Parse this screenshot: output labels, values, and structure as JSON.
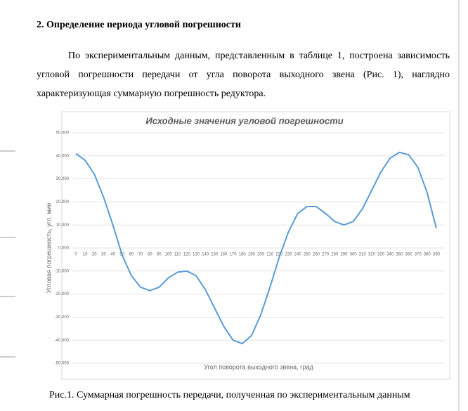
{
  "heading": "2. Определение периода угловой погрешности",
  "paragraph": "По экспериментальным данным, представленным в таблице 1, построена зависимость угловой погрешности передачи от угла поворота выходного звена (Рис. 1), наглядно характеризующая суммарную погрешность редуктора.",
  "chart_data": {
    "type": "line",
    "title": "Исходные значения угловой погрешности",
    "x_label": "Угол поворота выходного звена, град",
    "y_label": "Угловая погрешность, угл. мин",
    "x": [
      0,
      10,
      20,
      30,
      40,
      50,
      60,
      70,
      80,
      90,
      100,
      110,
      120,
      130,
      140,
      150,
      160,
      170,
      180,
      190,
      200,
      210,
      220,
      230,
      240,
      250,
      260,
      270,
      280,
      290,
      300,
      310,
      320,
      330,
      340,
      350,
      360,
      370,
      380,
      390
    ],
    "series": [
      {
        "name": "Угловая погрешность",
        "color": "#5b9bd5",
        "values": [
          41,
          38,
          32,
          22,
          10,
          -3,
          -12,
          -17,
          -18.5,
          -17,
          -13,
          -10.5,
          -10,
          -12,
          -18,
          -26,
          -34,
          -40,
          -41.5,
          -38,
          -29,
          -17,
          -4,
          7,
          15,
          18,
          18,
          15,
          11.5,
          10,
          11.5,
          17,
          25,
          33,
          39,
          41.5,
          40.5,
          35,
          24,
          8.5
        ]
      }
    ],
    "xlim": [
      0,
      390
    ],
    "ylim": [
      -50,
      50
    ],
    "yticks": [
      {
        "value": 50,
        "label": "50.000"
      },
      {
        "value": 40,
        "label": "40.000"
      },
      {
        "value": 30,
        "label": "30.000"
      },
      {
        "value": 20,
        "label": "20.000"
      },
      {
        "value": 10,
        "label": "10.000"
      },
      {
        "value": 0,
        "label": "0.000"
      },
      {
        "value": -10,
        "label": "-10.000"
      },
      {
        "value": -20,
        "label": "-20.000"
      },
      {
        "value": -30,
        "label": "-30.000"
      },
      {
        "value": -40,
        "label": "-40.000"
      },
      {
        "value": -50,
        "label": "-50.000"
      }
    ],
    "grid": true
  },
  "caption": "Рис.1. Суммарная погрешность передачи, полученная по экспериментальным данным"
}
